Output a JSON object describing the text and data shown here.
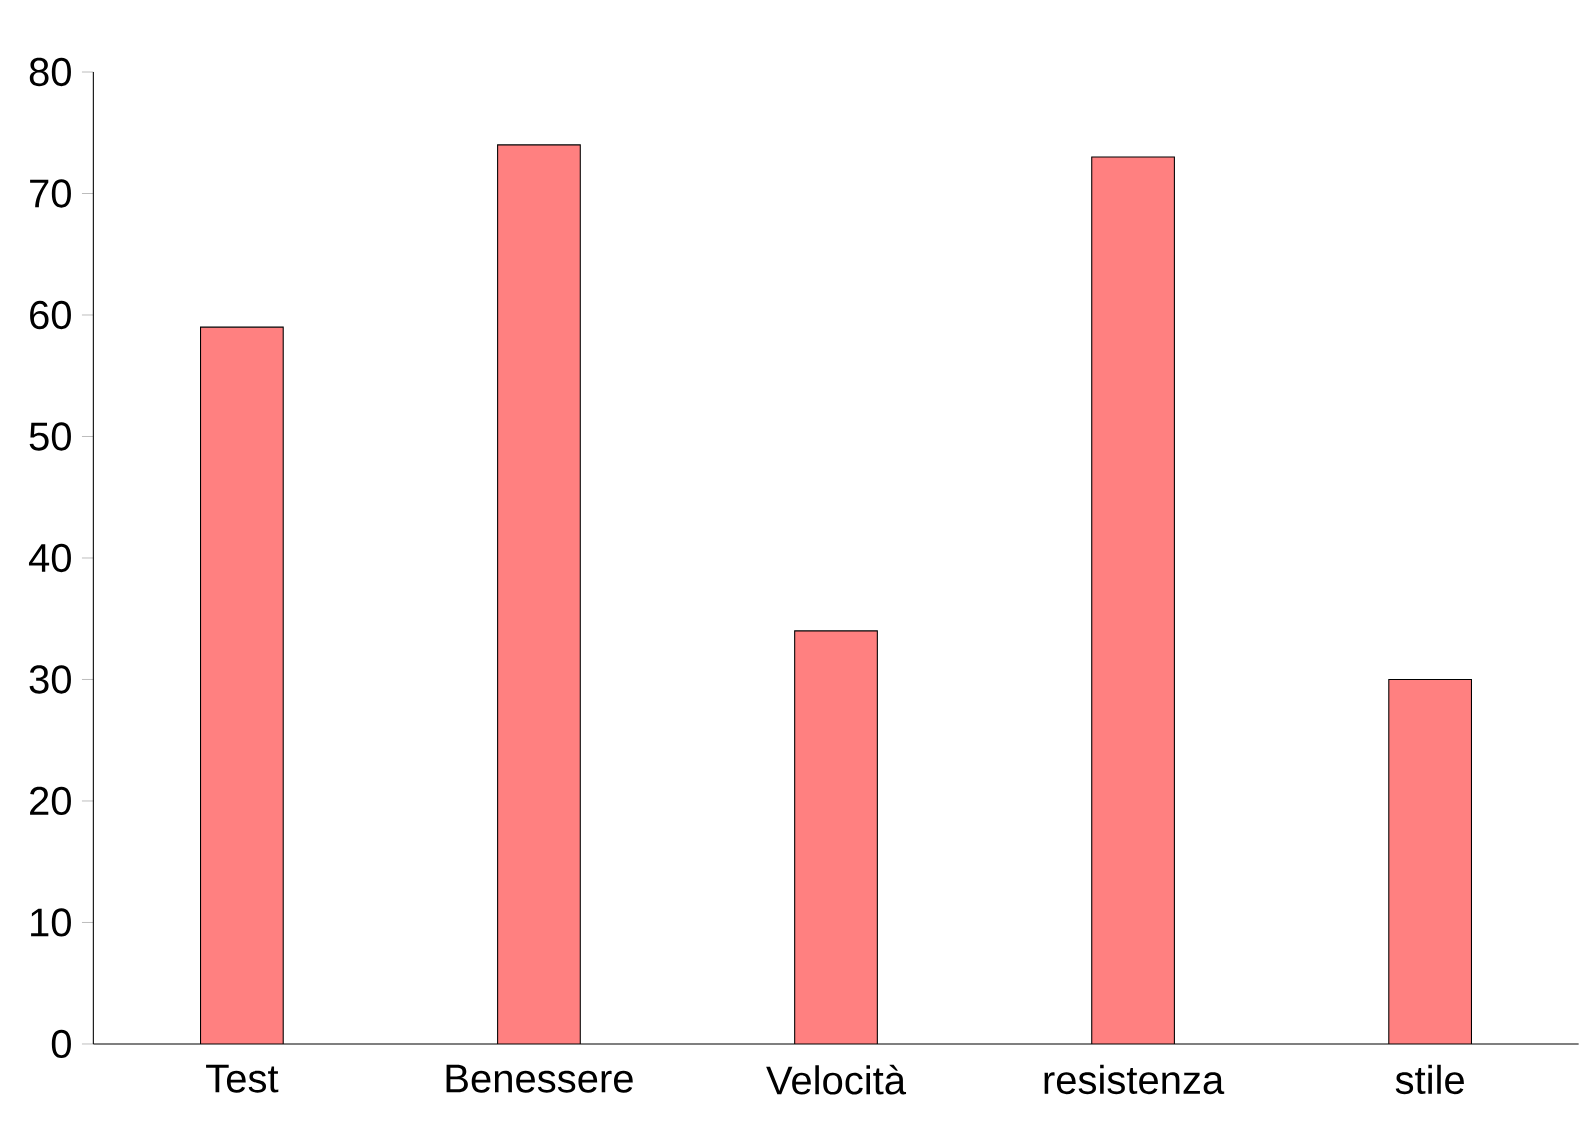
{
  "chart_data": {
    "type": "bar",
    "categories": [
      "Test",
      "Benessere",
      "Velocità",
      "resistenza",
      "stile"
    ],
    "values": [
      59,
      74,
      34,
      73,
      30
    ],
    "color": "#ff8080",
    "ylim": [
      0,
      80
    ],
    "yticks": [
      0,
      10,
      20,
      30,
      40,
      50,
      60,
      70,
      80
    ]
  }
}
